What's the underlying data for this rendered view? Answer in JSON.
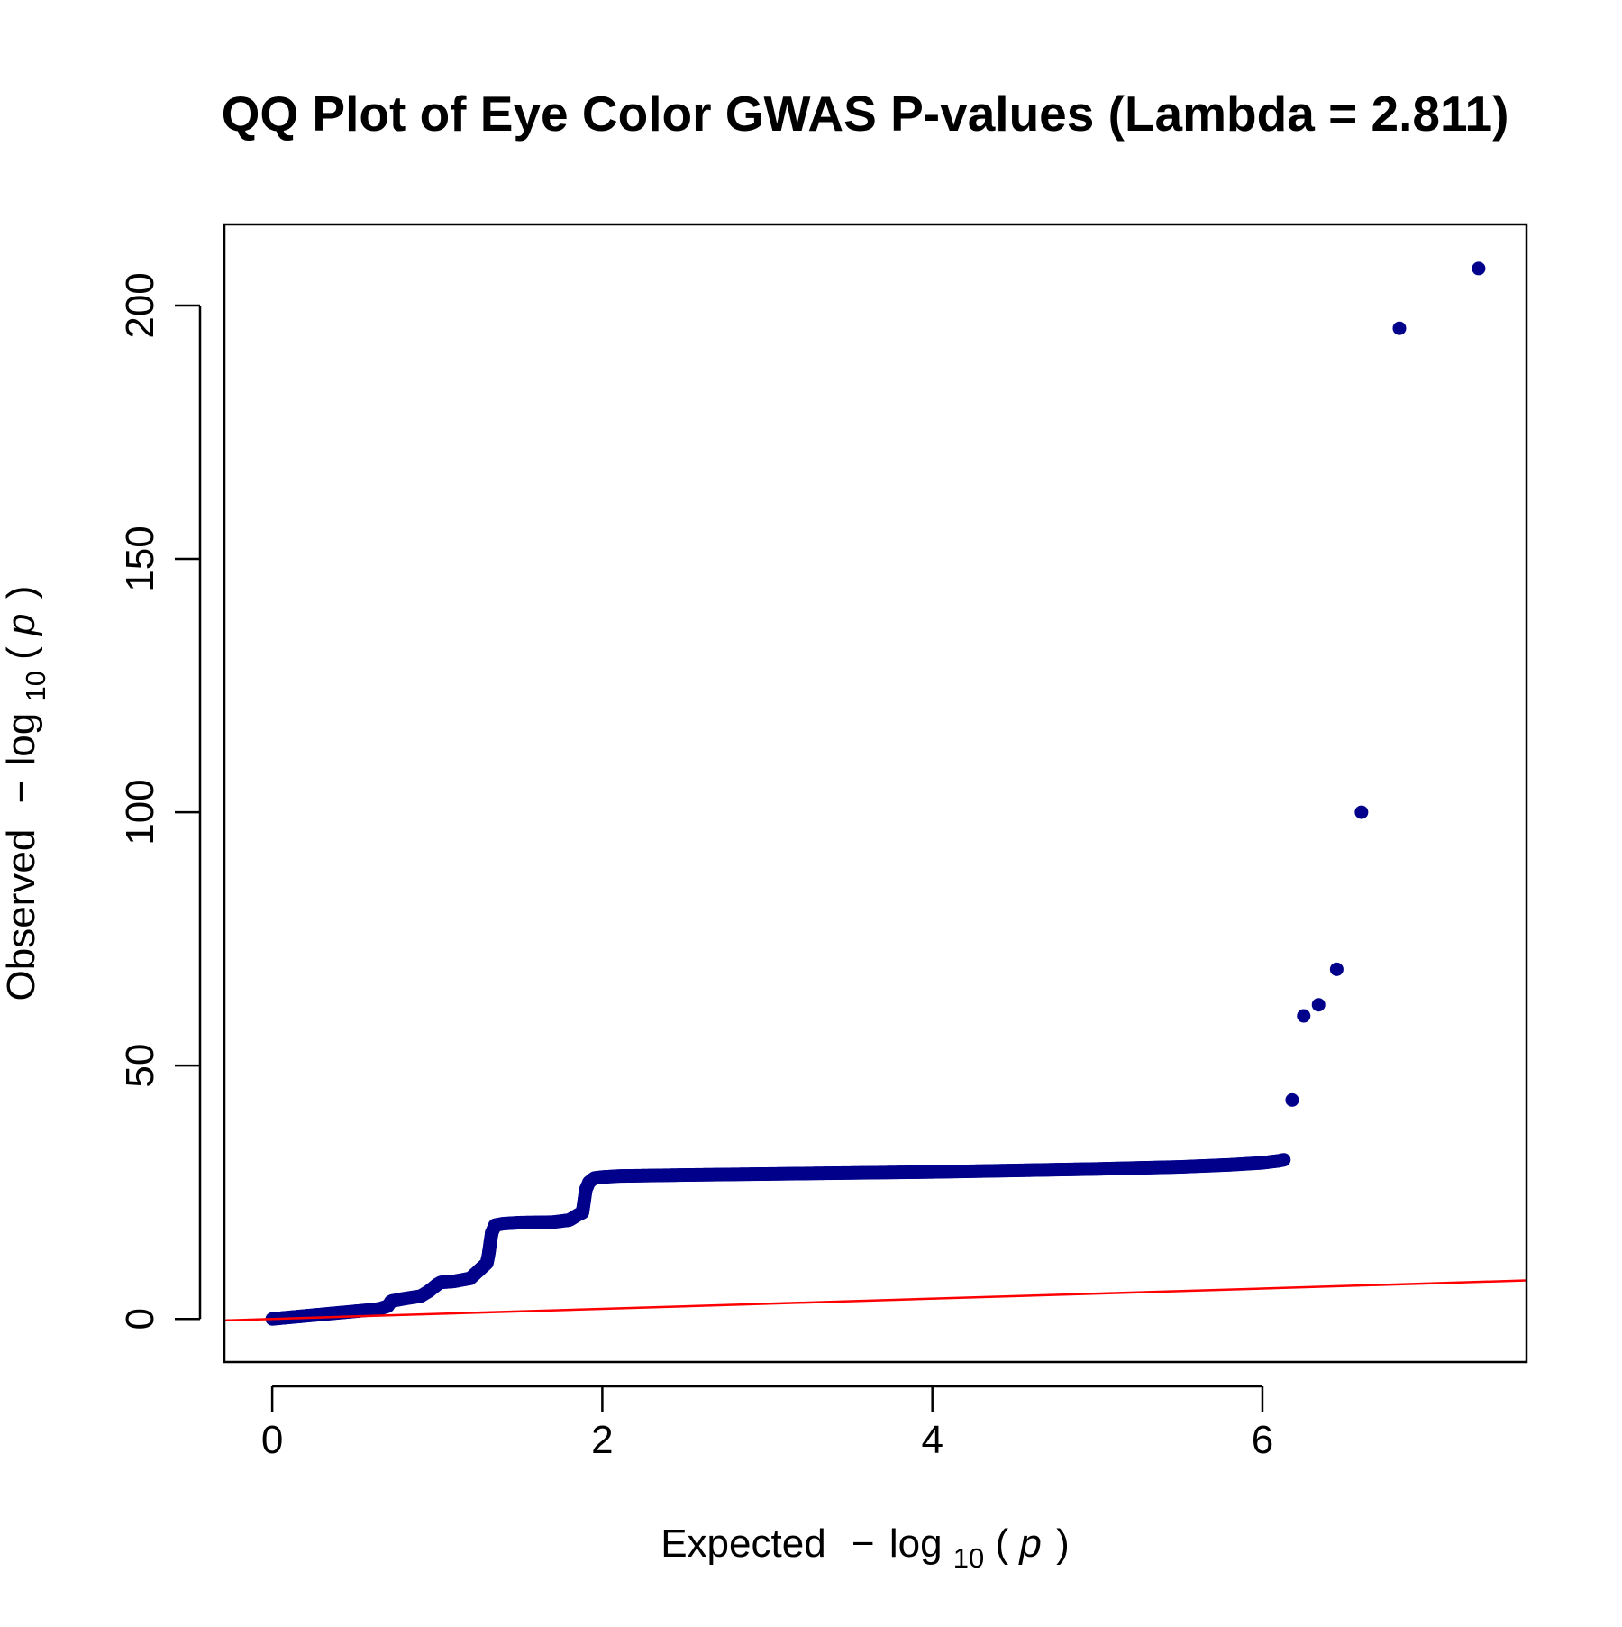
{
  "chart_data": {
    "type": "scatter",
    "title": "QQ Plot of Eye Color GWAS P-values (Lambda = 2.811)",
    "xlabel": "Expected -log10(p)",
    "ylabel": "Observed -log10(p)",
    "xlabel_parts": {
      "word": "Expected",
      "minus": "−",
      "log": "log",
      "base": "10",
      "open": "(",
      "var": "p",
      "close": ")"
    },
    "ylabel_parts": {
      "word": "Observed",
      "minus": "−",
      "log": "log",
      "base": "10",
      "open": "(",
      "var": "p",
      "close": ")"
    },
    "xlim": [
      -0.29,
      7.6
    ],
    "ylim": [
      -8.5,
      216
    ],
    "x_ticks": [
      0,
      2,
      4,
      6
    ],
    "y_ticks": [
      0,
      50,
      100,
      150,
      200
    ],
    "grid": false,
    "legend": "none",
    "point_color": "#00008B",
    "reference_line": {
      "label": "y = x",
      "color": "#FF0000",
      "x": [
        -0.29,
        7.6
      ],
      "y": [
        -0.29,
        7.6
      ]
    },
    "bulk_curve": {
      "x": [
        0,
        0.1,
        0.2,
        0.3,
        0.4,
        0.5,
        0.6,
        0.65,
        0.7,
        0.72,
        0.8,
        0.9,
        0.95,
        1.0,
        1.02,
        1.1,
        1.2,
        1.25,
        1.3,
        1.31,
        1.33,
        1.35,
        1.4,
        1.5,
        1.7,
        1.8,
        1.85,
        1.88,
        1.9,
        1.92,
        1.95,
        2.0,
        2.1,
        2.5,
        3.0,
        4.0,
        5.0,
        5.5,
        5.8,
        6.0,
        6.1,
        6.13
      ],
      "y": [
        0,
        0.3,
        0.6,
        0.9,
        1.2,
        1.5,
        1.8,
        2.0,
        2.5,
        3.5,
        4.0,
        4.5,
        5.5,
        6.8,
        7.2,
        7.4,
        8.0,
        9.5,
        11.0,
        12.5,
        17.0,
        18.5,
        18.8,
        19.0,
        19.1,
        19.5,
        20.5,
        21.0,
        25.5,
        27.0,
        27.8,
        28.0,
        28.2,
        28.4,
        28.6,
        29.0,
        29.6,
        30.0,
        30.4,
        30.8,
        31.2,
        31.4
      ]
    },
    "tail_points": {
      "x": [
        6.18,
        6.25,
        6.34,
        6.45,
        6.6,
        6.83,
        7.31
      ],
      "y": [
        43.2,
        59.8,
        62.0,
        69.0,
        100.0,
        195.5,
        207.3
      ]
    }
  }
}
